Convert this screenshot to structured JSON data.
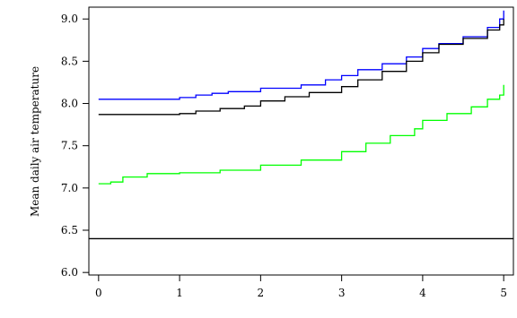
{
  "chart_data": {
    "type": "line",
    "title": "",
    "xlabel": "",
    "ylabel": "Mean daily air temperature",
    "xlim": [
      -0.12,
      5.12
    ],
    "ylim": [
      5.97,
      9.14
    ],
    "x_ticks": [
      0,
      1,
      2,
      3,
      4,
      5
    ],
    "x_tick_labels": [
      "0",
      "1",
      "2",
      "3",
      "4",
      "5"
    ],
    "y_ticks": [
      6.0,
      6.5,
      7.0,
      7.5,
      8.0,
      8.5,
      9.0
    ],
    "y_tick_labels": [
      "6.0",
      "6.5",
      "7.0",
      "7.5",
      "8.0",
      "8.5",
      "9.0"
    ],
    "grid": false,
    "legend": "none",
    "hline": {
      "y": 6.4,
      "color": "#000000"
    },
    "series": [
      {
        "color": "#0000ff",
        "x": [
          0,
          0.5,
          1.0,
          1.2,
          1.4,
          1.6,
          2.0,
          2.5,
          2.8,
          3.0,
          3.2,
          3.5,
          3.8,
          4.0,
          4.2,
          4.5,
          4.8,
          4.95,
          5.0
        ],
        "y": [
          8.05,
          8.05,
          8.07,
          8.1,
          8.12,
          8.14,
          8.18,
          8.22,
          8.28,
          8.33,
          8.4,
          8.47,
          8.55,
          8.65,
          8.71,
          8.79,
          8.9,
          9.0,
          9.1
        ]
      },
      {
        "color": "#000000",
        "x": [
          0,
          0.5,
          1.0,
          1.2,
          1.5,
          1.8,
          2.0,
          2.3,
          2.6,
          3.0,
          3.2,
          3.5,
          3.8,
          4.0,
          4.2,
          4.5,
          4.8,
          4.95,
          5.0
        ],
        "y": [
          7.87,
          7.87,
          7.88,
          7.91,
          7.94,
          7.97,
          8.03,
          8.08,
          8.13,
          8.2,
          8.28,
          8.38,
          8.5,
          8.6,
          8.7,
          8.77,
          8.87,
          8.93,
          9.0
        ]
      },
      {
        "color": "#00ff00",
        "x": [
          0,
          0.15,
          0.3,
          0.6,
          1.0,
          1.5,
          2.0,
          2.5,
          3.0,
          3.3,
          3.6,
          3.9,
          4.0,
          4.3,
          4.6,
          4.8,
          4.95,
          5.0
        ],
        "y": [
          7.05,
          7.07,
          7.13,
          7.17,
          7.18,
          7.21,
          7.27,
          7.33,
          7.43,
          7.53,
          7.62,
          7.7,
          7.8,
          7.88,
          7.96,
          8.05,
          8.1,
          8.22
        ]
      }
    ]
  }
}
